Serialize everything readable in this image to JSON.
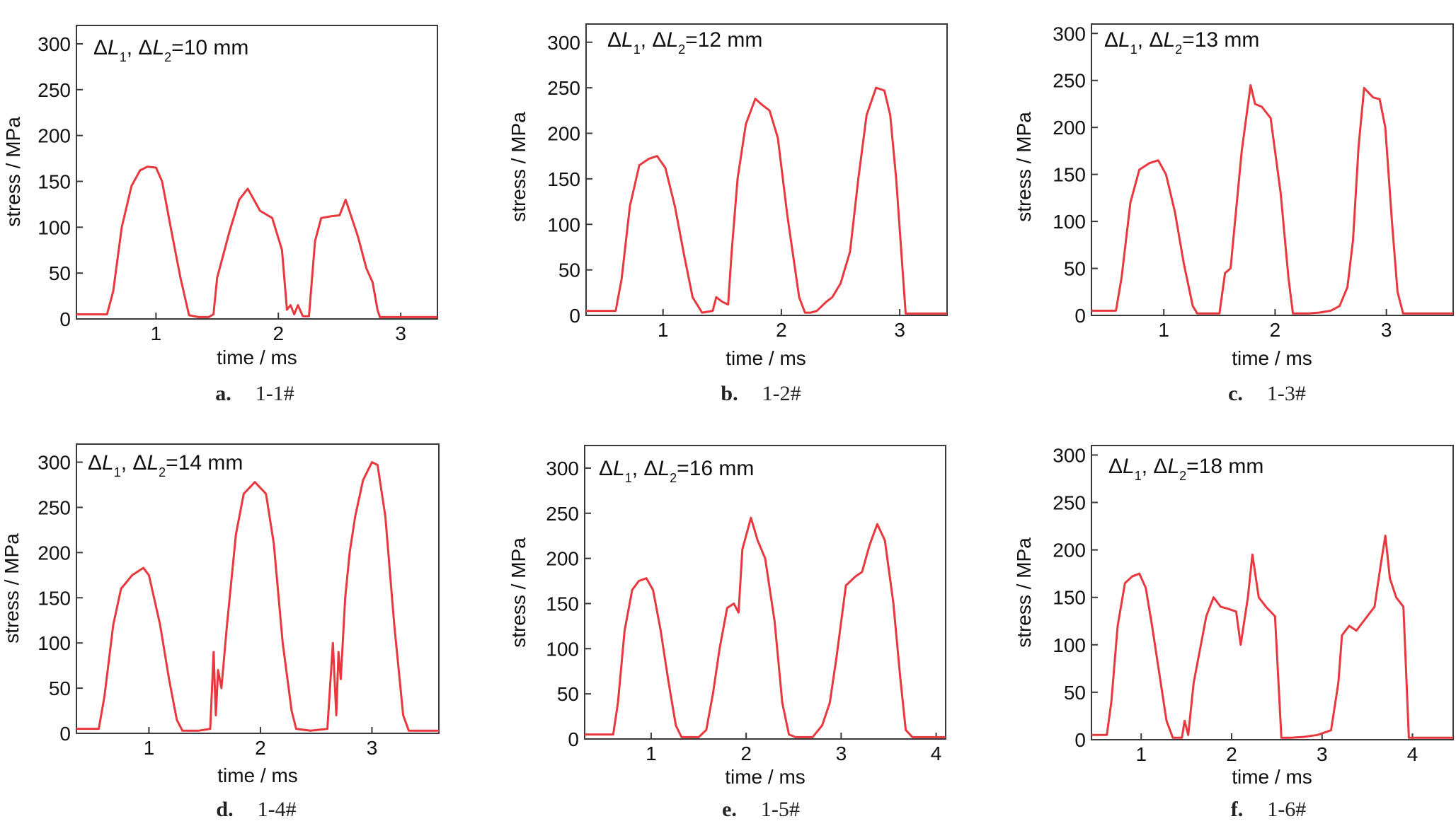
{
  "chart_data": [
    {
      "type": "line",
      "annotation": "ΔL1, ΔL2=10 mm",
      "annotation_parts": {
        "prefix1": "Δ",
        "var1": "L",
        "sub1": "1",
        "sep": ", Δ",
        "var2": "L",
        "sub2": "2",
        "value": "=10 mm"
      },
      "caption": {
        "letter": "a.",
        "text": "1-1#"
      },
      "xlabel": "time / ms",
      "ylabel": "stress / MPa",
      "xlim": [
        0.35,
        3.3
      ],
      "ylim": [
        0,
        320
      ],
      "xticks": [
        1,
        2,
        3
      ],
      "yticks": [
        0,
        50,
        100,
        150,
        200,
        250,
        300
      ],
      "grid": false,
      "legend": "none",
      "color": "#e8383d",
      "series": [
        {
          "x": [
            0.35,
            0.6,
            0.65,
            0.72,
            0.8,
            0.87,
            0.93,
            1.0,
            1.05,
            1.12,
            1.2,
            1.27,
            1.35,
            1.43,
            1.47,
            1.5,
            1.55,
            1.6,
            1.68,
            1.75,
            1.8,
            1.85,
            1.95,
            2.03,
            2.07,
            2.1,
            2.13,
            2.16,
            2.2,
            2.25,
            2.3,
            2.35,
            2.43,
            2.5,
            2.55,
            2.6,
            2.65,
            2.72,
            2.77,
            2.81,
            2.83,
            3.3
          ],
          "y": [
            5,
            5,
            30,
            100,
            145,
            162,
            166,
            165,
            150,
            100,
            45,
            4,
            2,
            2,
            5,
            45,
            70,
            95,
            130,
            142,
            130,
            118,
            110,
            75,
            10,
            15,
            5,
            15,
            3,
            3,
            85,
            110,
            112,
            113,
            130,
            110,
            90,
            55,
            40,
            10,
            2,
            2
          ]
        }
      ]
    },
    {
      "type": "line",
      "annotation": "ΔL1, ΔL2=12 mm",
      "annotation_parts": {
        "prefix1": "Δ",
        "var1": "L",
        "sub1": "1",
        "sep": ", Δ",
        "var2": "L",
        "sub2": "2",
        "value": "=12 mm"
      },
      "caption": {
        "letter": "b.",
        "text": "1-2#"
      },
      "xlabel": "time / ms",
      "ylabel": "stress / MPa",
      "xlim": [
        0.35,
        3.4
      ],
      "ylim": [
        0,
        320
      ],
      "xticks": [
        1,
        2,
        3
      ],
      "yticks": [
        0,
        50,
        100,
        150,
        200,
        250,
        300
      ],
      "grid": false,
      "legend": "none",
      "color": "#e8383d",
      "series": [
        {
          "x": [
            0.35,
            0.6,
            0.65,
            0.72,
            0.8,
            0.88,
            0.95,
            1.02,
            1.1,
            1.18,
            1.25,
            1.33,
            1.42,
            1.45,
            1.5,
            1.55,
            1.58,
            1.63,
            1.7,
            1.78,
            1.83,
            1.9,
            1.97,
            2.05,
            2.15,
            2.2,
            2.25,
            2.3,
            2.38,
            2.43,
            2.5,
            2.58,
            2.65,
            2.72,
            2.8,
            2.87,
            2.92,
            2.97,
            3.05,
            3.4
          ],
          "y": [
            5,
            5,
            40,
            120,
            165,
            172,
            175,
            162,
            120,
            65,
            20,
            3,
            5,
            20,
            15,
            12,
            70,
            150,
            210,
            238,
            232,
            225,
            195,
            110,
            20,
            3,
            3,
            5,
            15,
            20,
            35,
            70,
            150,
            220,
            250,
            247,
            220,
            150,
            2,
            2
          ]
        }
      ]
    },
    {
      "type": "line",
      "annotation": "ΔL1, ΔL2=13 mm",
      "annotation_parts": {
        "prefix1": "Δ",
        "var1": "L",
        "sub1": "1",
        "sep": ", Δ",
        "var2": "L",
        "sub2": "2",
        "value": "=13 mm"
      },
      "caption": {
        "letter": "c.",
        "text": "1-3#"
      },
      "xlabel": "time / ms",
      "ylabel": "stress / MPa",
      "xlim": [
        0.35,
        3.6
      ],
      "ylim": [
        0,
        310
      ],
      "xticks": [
        1,
        2,
        3
      ],
      "yticks": [
        0,
        50,
        100,
        150,
        200,
        250,
        300
      ],
      "grid": false,
      "legend": "none",
      "color": "#e8383d",
      "series": [
        {
          "x": [
            0.35,
            0.57,
            0.62,
            0.7,
            0.78,
            0.87,
            0.95,
            1.02,
            1.1,
            1.18,
            1.26,
            1.3,
            1.4,
            1.5,
            1.55,
            1.6,
            1.7,
            1.78,
            1.82,
            1.88,
            1.96,
            2.05,
            2.12,
            2.16,
            2.3,
            2.4,
            2.5,
            2.58,
            2.65,
            2.7,
            2.75,
            2.8,
            2.88,
            2.94,
            2.99,
            3.05,
            3.1,
            3.15,
            3.6
          ],
          "y": [
            5,
            5,
            40,
            120,
            155,
            162,
            165,
            150,
            110,
            55,
            10,
            2,
            2,
            2,
            45,
            50,
            175,
            245,
            225,
            222,
            210,
            130,
            40,
            2,
            2,
            3,
            5,
            10,
            30,
            80,
            180,
            242,
            232,
            230,
            200,
            100,
            25,
            2,
            2
          ]
        }
      ]
    },
    {
      "type": "line",
      "annotation": "ΔL1, ΔL2=14 mm",
      "annotation_parts": {
        "prefix1": "Δ",
        "var1": "L",
        "sub1": "1",
        "sep": ", Δ",
        "var2": "L",
        "sub2": "2",
        "value": "=14 mm"
      },
      "caption": {
        "letter": "d.",
        "text": "1-4#"
      },
      "xlabel": "time / ms",
      "ylabel": "stress / MPa",
      "xlim": [
        0.35,
        3.6
      ],
      "ylim": [
        0,
        320
      ],
      "xticks": [
        1,
        2,
        3
      ],
      "yticks": [
        0,
        50,
        100,
        150,
        200,
        250,
        300
      ],
      "grid": false,
      "legend": "none",
      "color": "#e8383d",
      "series": [
        {
          "x": [
            0.35,
            0.55,
            0.6,
            0.68,
            0.75,
            0.85,
            0.95,
            1.0,
            1.1,
            1.18,
            1.25,
            1.3,
            1.45,
            1.55,
            1.58,
            1.6,
            1.62,
            1.65,
            1.7,
            1.78,
            1.85,
            1.95,
            2.05,
            2.12,
            2.2,
            2.28,
            2.32,
            2.45,
            2.6,
            2.65,
            2.68,
            2.7,
            2.72,
            2.76,
            2.8,
            2.85,
            2.92,
            3.0,
            3.05,
            3.12,
            3.2,
            3.28,
            3.33,
            3.6
          ],
          "y": [
            5,
            5,
            40,
            120,
            160,
            175,
            183,
            175,
            120,
            60,
            15,
            3,
            3,
            5,
            90,
            20,
            70,
            50,
            120,
            220,
            265,
            278,
            265,
            210,
            100,
            25,
            5,
            3,
            5,
            100,
            20,
            90,
            60,
            150,
            200,
            240,
            280,
            300,
            297,
            240,
            120,
            20,
            3,
            3
          ]
        }
      ]
    },
    {
      "type": "line",
      "annotation": "ΔL1, ΔL2=16 mm",
      "annotation_parts": {
        "prefix1": "Δ",
        "var1": "L",
        "sub1": "1",
        "sep": ", Δ",
        "var2": "L",
        "sub2": "2",
        "value": "=16 mm"
      },
      "caption": {
        "letter": "e.",
        "text": "1-5#"
      },
      "xlabel": "time / ms",
      "ylabel": "stress / MPa",
      "xlim": [
        0.3,
        4.1
      ],
      "ylim": [
        0,
        325
      ],
      "xticks": [
        1,
        2,
        3,
        4
      ],
      "yticks": [
        0,
        50,
        100,
        150,
        200,
        250,
        300
      ],
      "grid": false,
      "legend": "none",
      "color": "#e8383d",
      "series": [
        {
          "x": [
            0.3,
            0.6,
            0.65,
            0.72,
            0.8,
            0.87,
            0.95,
            1.02,
            1.1,
            1.18,
            1.26,
            1.32,
            1.5,
            1.58,
            1.65,
            1.72,
            1.8,
            1.87,
            1.92,
            1.96,
            2.05,
            2.12,
            2.2,
            2.3,
            2.38,
            2.45,
            2.52,
            2.7,
            2.8,
            2.88,
            2.95,
            3.05,
            3.15,
            3.22,
            3.3,
            3.38,
            3.46,
            3.55,
            3.62,
            3.68,
            3.75,
            4.1
          ],
          "y": [
            5,
            5,
            40,
            120,
            165,
            175,
            178,
            165,
            120,
            65,
            15,
            2,
            2,
            10,
            50,
            100,
            145,
            150,
            140,
            210,
            245,
            220,
            200,
            130,
            40,
            5,
            2,
            2,
            15,
            40,
            90,
            170,
            180,
            185,
            215,
            238,
            220,
            150,
            70,
            10,
            2,
            2
          ]
        }
      ]
    },
    {
      "type": "line",
      "annotation": "ΔL1, ΔL2=18 mm",
      "annotation_parts": {
        "prefix1": "Δ",
        "var1": "L",
        "sub1": "1",
        "sep": ", Δ",
        "var2": "L",
        "sub2": "2",
        "value": "=18 mm"
      },
      "caption": {
        "letter": "f.",
        "text": "1-6#"
      },
      "xlabel": "time / ms",
      "ylabel": "stress / MPa",
      "xlim": [
        0.45,
        4.45
      ],
      "ylim": [
        0,
        310
      ],
      "xticks": [
        1,
        2,
        3,
        4
      ],
      "yticks": [
        0,
        50,
        100,
        150,
        200,
        250,
        300
      ],
      "grid": false,
      "legend": "none",
      "color": "#e8383d",
      "series": [
        {
          "x": [
            0.45,
            0.62,
            0.67,
            0.74,
            0.82,
            0.9,
            0.98,
            1.05,
            1.12,
            1.2,
            1.28,
            1.35,
            1.45,
            1.48,
            1.52,
            1.58,
            1.65,
            1.72,
            1.8,
            1.88,
            1.96,
            2.05,
            2.1,
            2.18,
            2.23,
            2.3,
            2.38,
            2.48,
            2.55,
            2.65,
            2.8,
            2.95,
            3.1,
            3.18,
            3.22,
            3.3,
            3.38,
            3.5,
            3.58,
            3.65,
            3.7,
            3.75,
            3.82,
            3.9,
            3.96,
            4.45
          ],
          "y": [
            5,
            5,
            40,
            120,
            165,
            172,
            175,
            160,
            120,
            70,
            20,
            2,
            2,
            20,
            5,
            60,
            95,
            130,
            150,
            140,
            138,
            135,
            100,
            150,
            195,
            150,
            140,
            130,
            2,
            2,
            3,
            5,
            10,
            60,
            110,
            120,
            115,
            130,
            140,
            185,
            215,
            170,
            150,
            140,
            2,
            2
          ]
        }
      ]
    }
  ]
}
